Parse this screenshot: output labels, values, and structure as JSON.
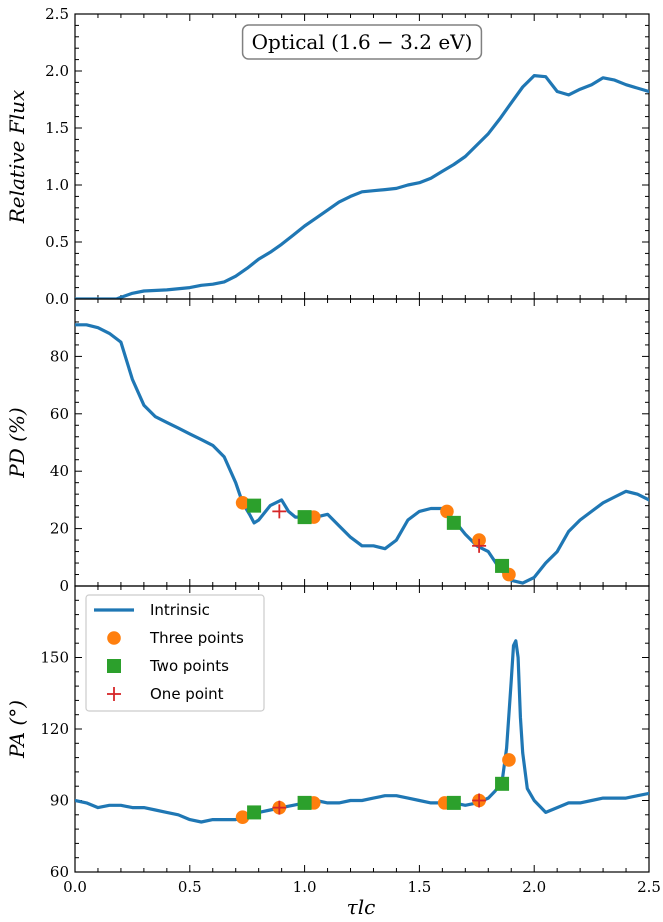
{
  "chart_data": {
    "type": "line",
    "x_range": [
      0,
      2.5
    ],
    "x_ticks": [
      0,
      0.5,
      1,
      1.5,
      2,
      2.5
    ],
    "x_tick_labels": [
      "0.0",
      "0.5",
      "1.0",
      "1.5",
      "2.0",
      "2.5"
    ],
    "xlabel": "τlc",
    "colors": {
      "intrinsic": "#1f77b4",
      "three": "#ff7f0e",
      "two": "#2ca02c",
      "one": "#d62728"
    },
    "legend": {
      "placement": "upper-left of bottom panel",
      "entries": [
        {
          "label": "Intrinsic",
          "marker": "line"
        },
        {
          "label": "Three points",
          "marker": "circle"
        },
        {
          "label": "Two points",
          "marker": "square"
        },
        {
          "label": "One point",
          "marker": "plus"
        }
      ]
    },
    "panels": [
      {
        "id": "flux",
        "ylabel": "Relative Flux",
        "ylim": [
          0,
          2.5
        ],
        "y_ticks": [
          0,
          0.5,
          1.0,
          1.5,
          2.0,
          2.5
        ],
        "y_tick_labels": [
          "0.0",
          "0.5",
          "1.0",
          "1.5",
          "2.0",
          "2.5"
        ],
        "annotation": "Optical (1.6 − 3.2 eV)",
        "series": [
          {
            "name": "Intrinsic",
            "x": [
              0,
              0.18,
              0.25,
              0.3,
              0.4,
              0.5,
              0.55,
              0.6,
              0.65,
              0.7,
              0.75,
              0.8,
              0.85,
              0.9,
              0.95,
              1.0,
              1.05,
              1.1,
              1.15,
              1.2,
              1.25,
              1.3,
              1.35,
              1.4,
              1.45,
              1.5,
              1.55,
              1.6,
              1.65,
              1.7,
              1.75,
              1.8,
              1.85,
              1.9,
              1.95,
              2.0,
              2.05,
              2.1,
              2.15,
              2.2,
              2.25,
              2.3,
              2.35,
              2.4,
              2.45,
              2.5
            ],
            "y": [
              0.0,
              0.0,
              0.05,
              0.07,
              0.08,
              0.1,
              0.12,
              0.13,
              0.15,
              0.2,
              0.27,
              0.35,
              0.41,
              0.48,
              0.56,
              0.64,
              0.71,
              0.78,
              0.85,
              0.9,
              0.94,
              0.95,
              0.96,
              0.97,
              1.0,
              1.02,
              1.06,
              1.12,
              1.18,
              1.25,
              1.35,
              1.45,
              1.58,
              1.72,
              1.86,
              1.96,
              1.95,
              1.82,
              1.79,
              1.84,
              1.88,
              1.94,
              1.92,
              1.88,
              1.85,
              1.82
            ]
          }
        ]
      },
      {
        "id": "pd",
        "ylabel": "PD (%)",
        "ylim": [
          0,
          100
        ],
        "y_ticks": [
          0,
          20,
          40,
          60,
          80
        ],
        "y_tick_labels": [
          "0",
          "20",
          "40",
          "60",
          "80"
        ],
        "series": [
          {
            "name": "Intrinsic",
            "x": [
              0,
              0.05,
              0.1,
              0.15,
              0.2,
              0.25,
              0.3,
              0.35,
              0.4,
              0.45,
              0.5,
              0.55,
              0.6,
              0.65,
              0.7,
              0.73,
              0.76,
              0.78,
              0.8,
              0.85,
              0.9,
              0.93,
              0.96,
              1.0,
              1.05,
              1.1,
              1.15,
              1.2,
              1.25,
              1.3,
              1.35,
              1.4,
              1.45,
              1.5,
              1.55,
              1.6,
              1.62,
              1.65,
              1.7,
              1.75,
              1.8,
              1.85,
              1.9,
              1.95,
              2.0,
              2.05,
              2.1,
              2.15,
              2.2,
              2.25,
              2.3,
              2.35,
              2.4,
              2.45,
              2.5
            ],
            "y": [
              91,
              91,
              90,
              88,
              85,
              72,
              63,
              59,
              57,
              55,
              53,
              51,
              49,
              45,
              36,
              29,
              25,
              22,
              23,
              28,
              30,
              26,
              24,
              24,
              24,
              25,
              21,
              17,
              14,
              14,
              13,
              16,
              23,
              26,
              27,
              27,
              26,
              23,
              18,
              14,
              12,
              6,
              2,
              1,
              3,
              8,
              12,
              19,
              23,
              26,
              29,
              31,
              33,
              32,
              30
            ]
          }
        ],
        "markers": {
          "three": [
            {
              "x": 0.73,
              "y": 29
            },
            {
              "x": 1.04,
              "y": 24
            },
            {
              "x": 1.62,
              "y": 26
            },
            {
              "x": 1.76,
              "y": 16
            },
            {
              "x": 1.89,
              "y": 4
            }
          ],
          "two": [
            {
              "x": 0.78,
              "y": 28
            },
            {
              "x": 1.0,
              "y": 24
            },
            {
              "x": 1.65,
              "y": 22
            },
            {
              "x": 1.86,
              "y": 7
            }
          ],
          "one": [
            {
              "x": 0.89,
              "y": 26
            },
            {
              "x": 1.76,
              "y": 14
            }
          ]
        }
      },
      {
        "id": "pa",
        "ylabel": "PA (°)",
        "ylim": [
          60,
          180
        ],
        "y_ticks": [
          60,
          90,
          120,
          150
        ],
        "y_tick_labels": [
          "60",
          "90",
          "120",
          "150"
        ],
        "series": [
          {
            "name": "Intrinsic",
            "x": [
              0,
              0.05,
              0.1,
              0.15,
              0.2,
              0.25,
              0.3,
              0.35,
              0.4,
              0.45,
              0.5,
              0.55,
              0.6,
              0.65,
              0.7,
              0.75,
              0.8,
              0.85,
              0.9,
              0.95,
              1.0,
              1.05,
              1.1,
              1.15,
              1.2,
              1.25,
              1.3,
              1.35,
              1.4,
              1.45,
              1.5,
              1.55,
              1.6,
              1.65,
              1.7,
              1.75,
              1.8,
              1.83,
              1.86,
              1.88,
              1.9,
              1.91,
              1.92,
              1.93,
              1.94,
              1.95,
              1.97,
              2.0,
              2.03,
              2.05,
              2.1,
              2.15,
              2.2,
              2.25,
              2.3,
              2.35,
              2.4,
              2.45,
              2.5
            ],
            "y": [
              90,
              89,
              87,
              88,
              88,
              87,
              87,
              86,
              85,
              84,
              82,
              81,
              82,
              82,
              82,
              83,
              85,
              86,
              87,
              88,
              89,
              90,
              89,
              89,
              90,
              90,
              91,
              92,
              92,
              91,
              90,
              89,
              89,
              89,
              88,
              89,
              91,
              94,
              98,
              112,
              140,
              155,
              157,
              150,
              125,
              110,
              95,
              90,
              87,
              85,
              87,
              89,
              89,
              90,
              91,
              91,
              91,
              92,
              93
            ]
          }
        ],
        "markers": {
          "three": [
            {
              "x": 0.73,
              "y": 83
            },
            {
              "x": 0.89,
              "y": 87
            },
            {
              "x": 1.04,
              "y": 89
            },
            {
              "x": 1.61,
              "y": 89
            },
            {
              "x": 1.76,
              "y": 90
            },
            {
              "x": 1.89,
              "y": 107
            }
          ],
          "two": [
            {
              "x": 0.78,
              "y": 85
            },
            {
              "x": 1.0,
              "y": 89
            },
            {
              "x": 1.65,
              "y": 89
            },
            {
              "x": 1.86,
              "y": 97
            }
          ],
          "one": [
            {
              "x": 0.89,
              "y": 87
            },
            {
              "x": 1.76,
              "y": 90
            }
          ]
        }
      }
    ]
  }
}
